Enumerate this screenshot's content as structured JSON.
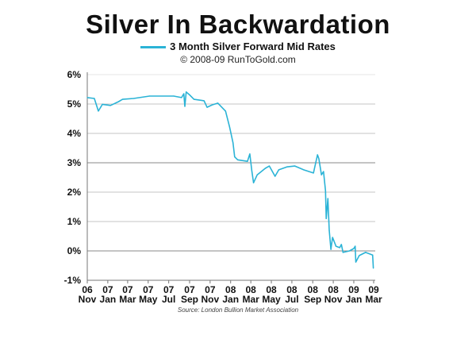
{
  "chart_data": {
    "type": "line",
    "title": "Silver In Backwardation",
    "subtitle": "© 2008-09 RunToGold.com",
    "source": "Source: London Bullion Market Association",
    "xlabel": "",
    "ylabel": "",
    "ylim": [
      -1,
      6
    ],
    "xlim": [
      "2006-11-01",
      "2009-03-01"
    ],
    "grid": true,
    "legend_position": "top-center",
    "y_ticks": [
      {
        "value": 6,
        "label": "6%"
      },
      {
        "value": 5,
        "label": "5%"
      },
      {
        "value": 4,
        "label": "4%"
      },
      {
        "value": 3,
        "label": "3%"
      },
      {
        "value": 2,
        "label": "2%"
      },
      {
        "value": 1,
        "label": "1%"
      },
      {
        "value": 0,
        "label": "0%"
      },
      {
        "value": -1,
        "label": "-1%"
      }
    ],
    "x_ticks": [
      {
        "date": "2006-11-01",
        "year": "06",
        "month": "Nov"
      },
      {
        "date": "2007-01-01",
        "year": "07",
        "month": "Jan"
      },
      {
        "date": "2007-03-01",
        "year": "07",
        "month": "Mar"
      },
      {
        "date": "2007-05-01",
        "year": "07",
        "month": "May"
      },
      {
        "date": "2007-07-01",
        "year": "07",
        "month": "Jul"
      },
      {
        "date": "2007-09-01",
        "year": "07",
        "month": "Sep"
      },
      {
        "date": "2007-11-01",
        "year": "07",
        "month": "Nov"
      },
      {
        "date": "2008-01-01",
        "year": "08",
        "month": "Jan"
      },
      {
        "date": "2008-03-01",
        "year": "08",
        "month": "Mar"
      },
      {
        "date": "2008-05-01",
        "year": "08",
        "month": "May"
      },
      {
        "date": "2008-07-01",
        "year": "08",
        "month": "Jul"
      },
      {
        "date": "2008-09-01",
        "year": "08",
        "month": "Sep"
      },
      {
        "date": "2008-11-01",
        "year": "08",
        "month": "Nov"
      },
      {
        "date": "2009-01-01",
        "year": "09",
        "month": "Jan"
      },
      {
        "date": "2009-03-01",
        "year": "09",
        "month": "Mar"
      }
    ],
    "series": [
      {
        "name": "3 Month Silver Forward Mid Rates",
        "color": "#2bb3d6",
        "points": [
          [
            "2006-11-01",
            5.22
          ],
          [
            "2006-11-22",
            5.19
          ],
          [
            "2006-12-04",
            4.76
          ],
          [
            "2006-12-16",
            4.99
          ],
          [
            "2007-01-09",
            4.95
          ],
          [
            "2007-02-02",
            5.08
          ],
          [
            "2007-02-14",
            5.16
          ],
          [
            "2007-03-19",
            5.19
          ],
          [
            "2007-05-05",
            5.27
          ],
          [
            "2007-07-16",
            5.27
          ],
          [
            "2007-08-08",
            5.22
          ],
          [
            "2007-08-15",
            5.35
          ],
          [
            "2007-08-18",
            4.92
          ],
          [
            "2007-08-22",
            5.41
          ],
          [
            "2007-09-02",
            5.3
          ],
          [
            "2007-09-14",
            5.16
          ],
          [
            "2007-10-14",
            5.11
          ],
          [
            "2007-10-23",
            4.89
          ],
          [
            "2007-11-07",
            4.97
          ],
          [
            "2007-11-24",
            5.03
          ],
          [
            "2007-12-17",
            4.76
          ],
          [
            "2007-12-29",
            4.22
          ],
          [
            "2008-01-08",
            3.68
          ],
          [
            "2008-01-13",
            3.2
          ],
          [
            "2008-01-22",
            3.1
          ],
          [
            "2008-02-20",
            3.05
          ],
          [
            "2008-02-27",
            3.3
          ],
          [
            "2008-03-04",
            2.73
          ],
          [
            "2008-03-09",
            2.32
          ],
          [
            "2008-03-20",
            2.59
          ],
          [
            "2008-04-13",
            2.81
          ],
          [
            "2008-04-25",
            2.89
          ],
          [
            "2008-05-12",
            2.54
          ],
          [
            "2008-05-23",
            2.76
          ],
          [
            "2008-06-16",
            2.86
          ],
          [
            "2008-07-10",
            2.89
          ],
          [
            "2008-08-05",
            2.76
          ],
          [
            "2008-09-03",
            2.65
          ],
          [
            "2008-09-15",
            3.27
          ],
          [
            "2008-09-19",
            3.14
          ],
          [
            "2008-09-27",
            2.59
          ],
          [
            "2008-10-03",
            2.7
          ],
          [
            "2008-10-09",
            2.05
          ],
          [
            "2008-10-11",
            1.1
          ],
          [
            "2008-10-16",
            1.78
          ],
          [
            "2008-10-20",
            0.7
          ],
          [
            "2008-10-25",
            0.05
          ],
          [
            "2008-10-30",
            0.46
          ],
          [
            "2008-11-09",
            0.16
          ],
          [
            "2008-11-20",
            0.11
          ],
          [
            "2008-11-25",
            0.22
          ],
          [
            "2008-11-30",
            -0.05
          ],
          [
            "2008-12-19",
            0.0
          ],
          [
            "2009-01-01",
            0.08
          ],
          [
            "2009-01-05",
            0.16
          ],
          [
            "2009-01-07",
            -0.38
          ],
          [
            "2009-01-17",
            -0.16
          ],
          [
            "2009-02-05",
            -0.05
          ],
          [
            "2009-02-19",
            -0.11
          ],
          [
            "2009-02-26",
            -0.14
          ],
          [
            "2009-02-28",
            -0.59
          ]
        ]
      }
    ]
  }
}
